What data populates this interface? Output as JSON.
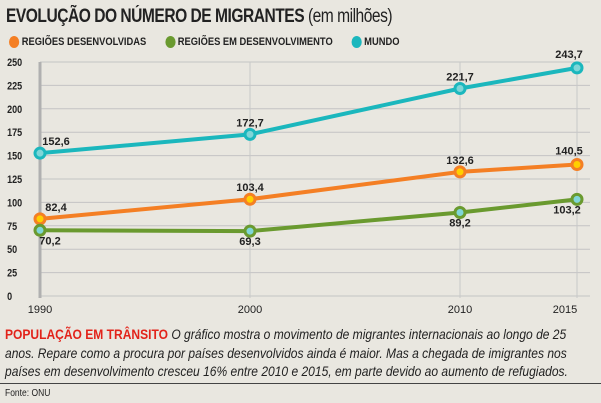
{
  "chart_data": {
    "type": "line",
    "title": "EVOLUÇÃO DO NÚMERO DE MIGRANTES",
    "subtitle": "(em milhões)",
    "x": [
      "1990",
      "2000",
      "2010",
      "2015"
    ],
    "ylim": [
      0,
      250
    ],
    "yticks": [
      "0",
      "25",
      "50",
      "75",
      "100",
      "125",
      "150",
      "175",
      "200",
      "225",
      "250"
    ],
    "grid": true,
    "legend_position": "top-left",
    "series": [
      {
        "name": "REGIÕES DESENVOLVIDAS",
        "color": "#f47f24",
        "values": [
          82.4,
          103.4,
          132.6,
          140.5
        ],
        "labels": [
          "82,4",
          "103,4",
          "132,6",
          "140,5"
        ]
      },
      {
        "name": "REGIÕES EM DESENVOLVIMENTO",
        "color": "#6a9a2f",
        "values": [
          70.2,
          69.3,
          89.2,
          103.2
        ],
        "labels": [
          "70,2",
          "69,3",
          "89,2",
          "103,2"
        ]
      },
      {
        "name": "MUNDO",
        "color": "#1bb7bd",
        "values": [
          152.6,
          172.7,
          221.7,
          243.7
        ],
        "labels": [
          "152,6",
          "172,7",
          "221,7",
          "243,7"
        ]
      }
    ]
  },
  "caption": {
    "heading": "POPULAÇÃO EM TRÂNSITO",
    "text": " O gráfico mostra o movimento de migrantes internacionais ao longo de 25 anos. Repare como a procura por países desenvolvidos ainda é maior. Mas a chegada de imigrantes nos países em desenvolvimento cresceu 16% entre 2010 e 2015, em parte devido ao aumento de refugiados."
  },
  "source": "Fonte: ONU"
}
